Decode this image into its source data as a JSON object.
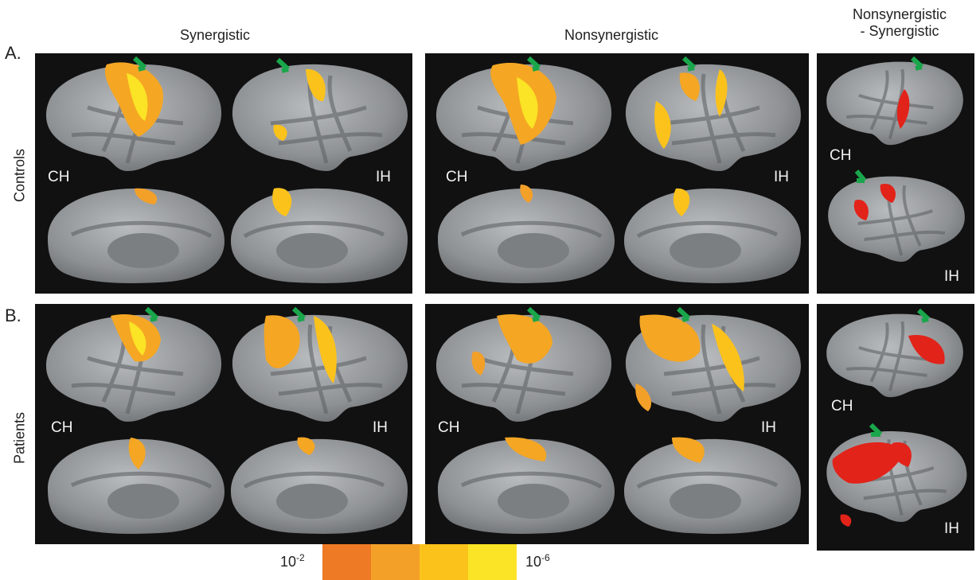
{
  "columns": {
    "synergistic": "Synergistic",
    "nonsynergistic": "Nonsynergistic",
    "difference_line1": "Nonsynergistic",
    "difference_line2": "- Synergistic"
  },
  "rows": {
    "a_letter": "A.",
    "a_label": "Controls",
    "b_letter": "B.",
    "b_label": "Patients"
  },
  "hemispheres": {
    "contra": "CH",
    "ipsi": "IH"
  },
  "colorbar": {
    "low_base": "10",
    "low_exp": "-2",
    "high_base": "10",
    "high_exp": "-6",
    "colors": [
      "#ee7a25",
      "#f3a029",
      "#fcc21c",
      "#fbe325"
    ]
  }
}
